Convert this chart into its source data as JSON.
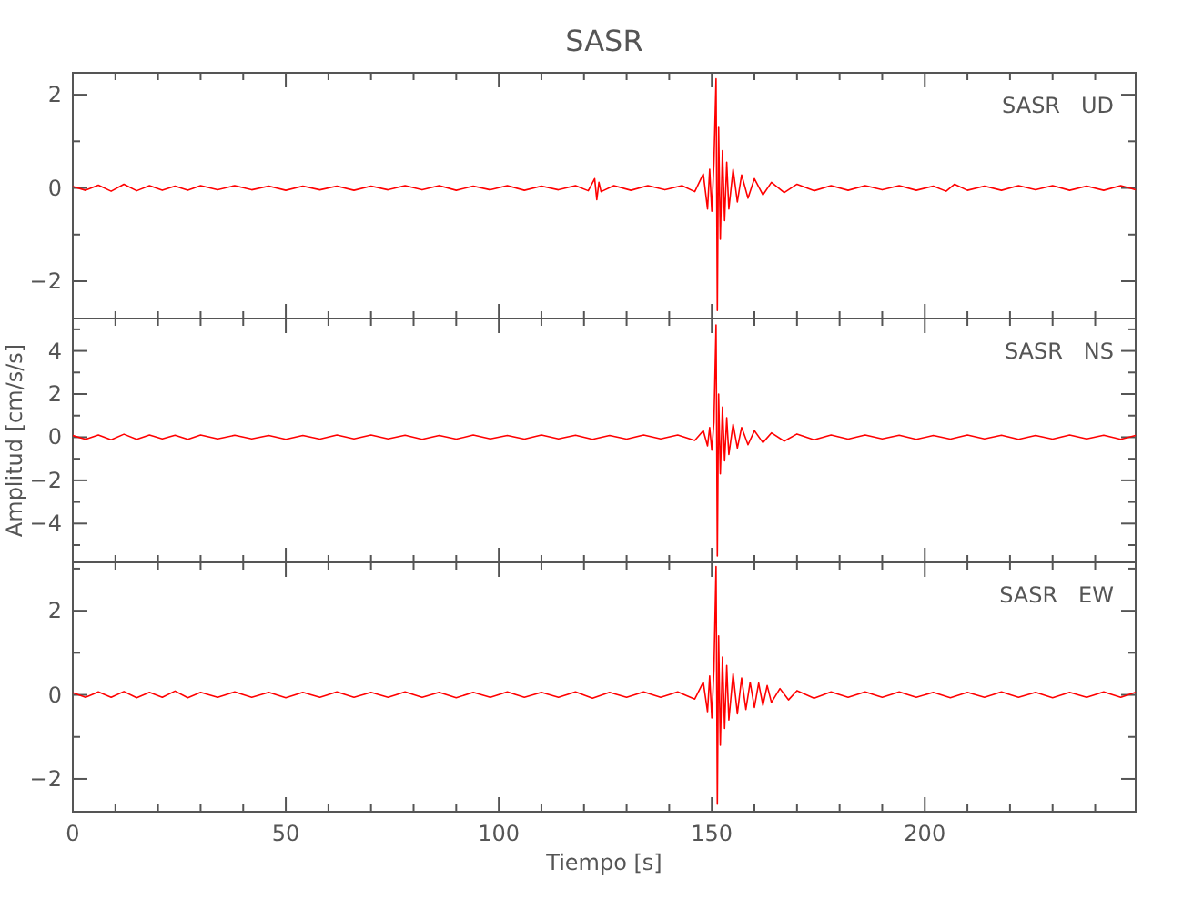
{
  "chart_data": [
    {
      "type": "line",
      "title": "SASR",
      "xlim": [
        0,
        249.5
      ],
      "xticks": [
        0,
        {
          "value": 10,
          "label": null
        },
        {
          "value": 20,
          "label": null
        },
        {
          "value": 30,
          "label": null
        },
        {
          "value": 40,
          "label": null
        },
        50,
        {
          "value": 60,
          "label": null
        },
        {
          "value": 70,
          "label": null
        },
        {
          "value": 80,
          "label": null
        },
        {
          "value": 90,
          "label": null
        },
        100,
        {
          "value": 110,
          "label": null
        },
        {
          "value": 120,
          "label": null
        },
        {
          "value": 130,
          "label": null
        },
        {
          "value": 140,
          "label": null
        },
        150,
        {
          "value": 160,
          "label": null
        },
        {
          "value": 170,
          "label": null
        },
        {
          "value": 180,
          "label": null
        },
        {
          "value": 190,
          "label": null
        },
        200,
        {
          "value": 210,
          "label": null
        },
        {
          "value": 220,
          "label": null
        },
        {
          "value": 230,
          "label": null
        },
        {
          "value": 240,
          "label": null
        }
      ],
      "ylim": [
        -2.8,
        2.47
      ],
      "yticks": [
        -2,
        {
          "value": -1,
          "label": null
        },
        0,
        {
          "value": 1,
          "label": null
        },
        2
      ],
      "tick_labels": "y",
      "series": [
        {
          "name": "SASR   UD",
          "color": "#ff0000",
          "x": [
            0,
            3,
            6,
            9,
            12,
            15,
            18,
            21,
            24,
            27,
            30,
            34,
            38,
            42,
            46,
            50,
            54,
            58,
            62,
            66,
            70,
            74,
            78,
            82,
            86,
            90,
            94,
            98,
            102,
            106,
            110,
            114,
            118,
            121,
            122.5,
            123,
            123.5,
            124,
            127,
            131,
            135,
            139,
            143,
            146,
            148,
            149,
            149.5,
            150,
            150.5,
            151,
            151.3,
            151.6,
            152,
            152.5,
            153,
            153.5,
            154,
            155,
            156,
            157,
            158.5,
            160,
            162,
            164,
            167,
            170,
            174,
            178,
            182,
            186,
            190,
            194,
            198,
            202,
            205,
            207,
            210,
            214,
            218,
            222,
            226,
            230,
            234,
            238,
            242,
            246,
            249.5
          ],
          "values": [
            0.03,
            -0.05,
            0.06,
            -0.07,
            0.08,
            -0.06,
            0.05,
            -0.05,
            0.04,
            -0.05,
            0.05,
            -0.04,
            0.05,
            -0.04,
            0.04,
            -0.05,
            0.04,
            -0.04,
            0.04,
            -0.05,
            0.04,
            -0.04,
            0.05,
            -0.04,
            0.05,
            -0.05,
            0.04,
            -0.04,
            0.05,
            -0.05,
            0.04,
            -0.04,
            0.05,
            -0.06,
            0.2,
            -0.25,
            0.12,
            -0.08,
            0.05,
            -0.05,
            0.05,
            -0.04,
            0.05,
            -0.08,
            0.3,
            -0.45,
            0.4,
            -0.5,
            0.55,
            2.34,
            -2.63,
            1.3,
            -1.1,
            0.8,
            -0.7,
            0.55,
            -0.45,
            0.4,
            -0.3,
            0.28,
            -0.22,
            0.2,
            -0.15,
            0.12,
            -0.1,
            0.08,
            -0.06,
            0.05,
            -0.05,
            0.05,
            -0.04,
            0.05,
            -0.05,
            0.04,
            -0.07,
            0.08,
            -0.05,
            0.04,
            -0.05,
            0.05,
            -0.04,
            0.05,
            -0.05,
            0.04,
            -0.05,
            0.05,
            -0.04
          ]
        }
      ]
    },
    {
      "type": "line",
      "ylabel": "Amplitud [cm/s/s]",
      "xlim": [
        0,
        249.5
      ],
      "xticks": [
        0,
        {
          "value": 10,
          "label": null
        },
        {
          "value": 20,
          "label": null
        },
        {
          "value": 30,
          "label": null
        },
        {
          "value": 40,
          "label": null
        },
        50,
        {
          "value": 60,
          "label": null
        },
        {
          "value": 70,
          "label": null
        },
        {
          "value": 80,
          "label": null
        },
        {
          "value": 90,
          "label": null
        },
        100,
        {
          "value": 110,
          "label": null
        },
        {
          "value": 120,
          "label": null
        },
        {
          "value": 130,
          "label": null
        },
        {
          "value": 140,
          "label": null
        },
        150,
        {
          "value": 160,
          "label": null
        },
        {
          "value": 170,
          "label": null
        },
        {
          "value": 180,
          "label": null
        },
        {
          "value": 190,
          "label": null
        },
        200,
        {
          "value": 210,
          "label": null
        },
        {
          "value": 220,
          "label": null
        },
        {
          "value": 230,
          "label": null
        },
        {
          "value": 240,
          "label": null
        }
      ],
      "ylim": [
        -5.8,
        5.5
      ],
      "yticks": [
        {
          "value": -5,
          "label": null
        },
        -4,
        {
          "value": -3,
          "label": null
        },
        -2,
        {
          "value": -1,
          "label": null
        },
        0,
        {
          "value": 1,
          "label": null
        },
        2,
        {
          "value": 3,
          "label": null
        },
        4,
        {
          "value": 5,
          "label": null
        }
      ],
      "tick_labels": "y",
      "series": [
        {
          "name": "SASR   NS",
          "color": "#ff0000",
          "x": [
            0,
            3,
            6,
            9,
            12,
            15,
            18,
            21,
            24,
            27,
            30,
            34,
            38,
            42,
            46,
            50,
            54,
            58,
            62,
            66,
            70,
            74,
            78,
            82,
            86,
            90,
            94,
            98,
            102,
            106,
            110,
            114,
            118,
            122,
            126,
            130,
            134,
            138,
            142,
            146,
            148,
            149,
            149.5,
            150,
            150.5,
            151,
            151.3,
            151.6,
            152,
            152.5,
            153,
            153.5,
            154,
            155,
            156,
            157,
            158.5,
            160,
            162,
            164,
            167,
            170,
            174,
            178,
            182,
            186,
            190,
            194,
            198,
            202,
            206,
            210,
            214,
            218,
            222,
            226,
            230,
            234,
            238,
            242,
            246,
            249.5
          ],
          "values": [
            0.08,
            -0.1,
            0.1,
            -0.12,
            0.14,
            -0.1,
            0.1,
            -0.08,
            0.09,
            -0.1,
            0.1,
            -0.08,
            0.09,
            -0.08,
            0.08,
            -0.1,
            0.08,
            -0.09,
            0.1,
            -0.08,
            0.1,
            -0.08,
            0.09,
            -0.1,
            0.08,
            -0.09,
            0.1,
            -0.08,
            0.08,
            -0.09,
            0.1,
            -0.08,
            0.09,
            -0.1,
            0.08,
            -0.09,
            0.1,
            -0.08,
            0.1,
            -0.15,
            0.3,
            -0.4,
            0.45,
            -0.6,
            0.7,
            5.2,
            -5.5,
            2.0,
            -1.7,
            1.4,
            -1.1,
            0.9,
            -0.8,
            0.6,
            -0.5,
            0.45,
            -0.35,
            0.3,
            -0.25,
            0.2,
            -0.18,
            0.15,
            -0.12,
            0.1,
            -0.09,
            0.1,
            -0.08,
            0.09,
            -0.1,
            0.08,
            -0.09,
            0.1,
            -0.08,
            0.09,
            -0.1,
            0.08,
            -0.09,
            0.1,
            -0.08,
            0.09,
            -0.1,
            0.08
          ]
        }
      ]
    },
    {
      "type": "line",
      "xlabel": "Tiempo [s]",
      "xlim": [
        0,
        249.5
      ],
      "xticks": [
        0,
        {
          "value": 10,
          "label": null
        },
        {
          "value": 20,
          "label": null
        },
        {
          "value": 30,
          "label": null
        },
        {
          "value": 40,
          "label": null
        },
        50,
        {
          "value": 60,
          "label": null
        },
        {
          "value": 70,
          "label": null
        },
        {
          "value": 80,
          "label": null
        },
        {
          "value": 90,
          "label": null
        },
        100,
        {
          "value": 110,
          "label": null
        },
        {
          "value": 120,
          "label": null
        },
        {
          "value": 130,
          "label": null
        },
        {
          "value": 140,
          "label": null
        },
        150,
        {
          "value": 160,
          "label": null
        },
        {
          "value": 170,
          "label": null
        },
        {
          "value": 180,
          "label": null
        },
        {
          "value": 190,
          "label": null
        },
        200,
        {
          "value": 210,
          "label": null
        },
        {
          "value": 220,
          "label": null
        },
        {
          "value": 230,
          "label": null
        },
        {
          "value": 240,
          "label": null
        }
      ],
      "ylim": [
        -2.78,
        3.15
      ],
      "yticks": [
        -2,
        {
          "value": -1,
          "label": null
        },
        0,
        {
          "value": 1,
          "label": null
        },
        2,
        {
          "value": 3,
          "label": null
        }
      ],
      "series": [
        {
          "name": "SASR   EW",
          "color": "#ff0000",
          "x": [
            0,
            3,
            6,
            9,
            12,
            15,
            18,
            21,
            24,
            27,
            30,
            34,
            38,
            42,
            46,
            50,
            54,
            58,
            62,
            66,
            70,
            74,
            78,
            82,
            86,
            90,
            94,
            98,
            102,
            106,
            110,
            114,
            118,
            122,
            126,
            130,
            134,
            138,
            142,
            146,
            148,
            149,
            149.5,
            150,
            150.5,
            151,
            151.3,
            151.6,
            152,
            152.5,
            153,
            153.5,
            154,
            155,
            156,
            157,
            158,
            159,
            160,
            161,
            162,
            163,
            164,
            166,
            168,
            170,
            174,
            178,
            182,
            186,
            190,
            194,
            198,
            202,
            206,
            210,
            214,
            218,
            222,
            226,
            230,
            234,
            238,
            242,
            246,
            249.5
          ],
          "values": [
            0.05,
            -0.06,
            0.07,
            -0.06,
            0.08,
            -0.07,
            0.06,
            -0.06,
            0.09,
            -0.07,
            0.06,
            -0.06,
            0.07,
            -0.06,
            0.06,
            -0.07,
            0.06,
            -0.06,
            0.07,
            -0.06,
            0.06,
            -0.06,
            0.07,
            -0.06,
            0.06,
            -0.07,
            0.06,
            -0.06,
            0.07,
            -0.06,
            0.06,
            -0.06,
            0.07,
            -0.08,
            0.06,
            -0.06,
            0.07,
            -0.06,
            0.07,
            -0.1,
            0.3,
            -0.4,
            0.45,
            -0.55,
            0.6,
            3.05,
            -2.6,
            1.4,
            -1.2,
            0.9,
            -0.8,
            0.7,
            -0.6,
            0.5,
            -0.45,
            0.4,
            -0.35,
            0.3,
            -0.3,
            0.28,
            -0.25,
            0.22,
            -0.18,
            0.15,
            -0.12,
            0.1,
            -0.08,
            0.07,
            -0.06,
            0.07,
            -0.06,
            0.07,
            -0.06,
            0.06,
            -0.07,
            0.06,
            -0.06,
            0.07,
            -0.06,
            0.06,
            -0.07,
            0.06,
            -0.06,
            0.07,
            -0.06,
            0.06
          ]
        }
      ]
    }
  ]
}
